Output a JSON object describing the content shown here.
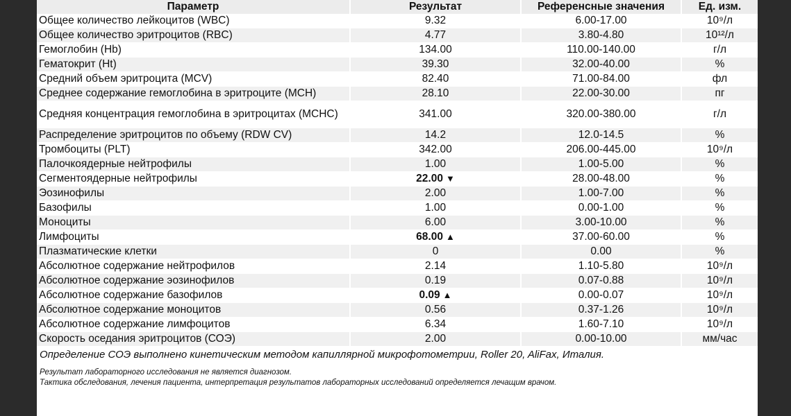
{
  "table": {
    "headers": [
      "Параметр",
      "Результат",
      "Референсные значения",
      "Ед. изм."
    ],
    "rows": [
      {
        "param": "Общее количество лейкоцитов (WBC)",
        "result": "9.32",
        "ref": "6.00-17.00",
        "unit": "10⁹/л"
      },
      {
        "param": "Общее количество эритроцитов (RBC)",
        "result": "4.77",
        "ref": "3.80-4.80",
        "unit": "10¹²/л"
      },
      {
        "param": "Гемоглобин (Hb)",
        "result": "134.00",
        "ref": "110.00-140.00",
        "unit": "г/л"
      },
      {
        "param": "Гематокрит (Ht)",
        "result": "39.30",
        "ref": "32.00-40.00",
        "unit": "%"
      },
      {
        "param": "Средний объем эритроцита (MCV)",
        "result": "82.40",
        "ref": "71.00-84.00",
        "unit": "фл"
      },
      {
        "param": "Среднее содержание гемоглобина в эритроците (MCH)",
        "result": "28.10",
        "ref": "22.00-30.00",
        "unit": "пг"
      },
      {
        "param": "Средняя концентрация гемоглобина в эритроцитах (MCHC)",
        "result": "341.00",
        "ref": "320.00-380.00",
        "unit": "г/л"
      },
      {
        "param": "Распределение эритроцитов по объему (RDW CV)",
        "result": "14.2",
        "ref": "12.0-14.5",
        "unit": "%"
      },
      {
        "param": "Тромбоциты (PLT)",
        "result": "342.00",
        "ref": "206.00-445.00",
        "unit": "10⁹/л"
      },
      {
        "param": "Палочкоядерные нейтрофилы",
        "result": "1.00",
        "ref": "1.00-5.00",
        "unit": "%"
      },
      {
        "param": "Сегментоядерные нейтрофилы",
        "result": "22.00",
        "flag": "▼",
        "ref": "28.00-48.00",
        "unit": "%"
      },
      {
        "param": "Эозинофилы",
        "result": "2.00",
        "ref": "1.00-7.00",
        "unit": "%"
      },
      {
        "param": "Базофилы",
        "result": "1.00",
        "ref": "0.00-1.00",
        "unit": "%"
      },
      {
        "param": "Моноциты",
        "result": "6.00",
        "ref": "3.00-10.00",
        "unit": "%"
      },
      {
        "param": "Лимфоциты",
        "result": "68.00",
        "flag": "▲",
        "ref": "37.00-60.00",
        "unit": "%"
      },
      {
        "param": "Плазматические клетки",
        "result": "0",
        "ref": "0.00",
        "unit": "%"
      },
      {
        "param": "Абсолютное содержание нейтрофилов",
        "result": "2.14",
        "ref": "1.10-5.80",
        "unit": "10⁹/л"
      },
      {
        "param": "Абсолютное содержание эозинофилов",
        "result": "0.19",
        "ref": "0.07-0.88",
        "unit": "10⁹/л"
      },
      {
        "param": "Абсолютное содержание базофилов",
        "result": "0.09",
        "flag": "▲",
        "ref": "0.00-0.07",
        "unit": "10⁹/л"
      },
      {
        "param": "Абсолютное содержание моноцитов",
        "result": "0.56",
        "ref": "0.37-1.26",
        "unit": "10⁹/л"
      },
      {
        "param": "Абсолютное содержание лимфоцитов",
        "result": "6.34",
        "ref": "1.60-7.10",
        "unit": "10⁹/л"
      },
      {
        "param": "Скорость оседания эритроцитов (СОЭ)",
        "result": "2.00",
        "ref": "0.00-10.00",
        "unit": "мм/час"
      }
    ]
  },
  "method_note": "Определение СОЭ выполнено кинетическим методом капиллярной микрофотометрии, Roller 20, AliFax, Италия.",
  "disclaimer": [
    "Результат лабораторного исследования не является диагнозом.",
    "Тактика обследования, лечения пациента, интерпретация результатов лабораторных исследований определяется лечащим врачом."
  ]
}
